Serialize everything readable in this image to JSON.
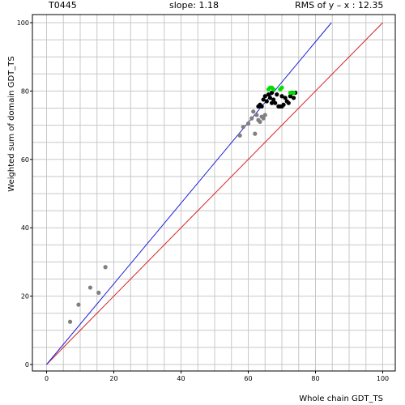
{
  "header": {
    "target_id": "T0445",
    "slope": "slope: 1.18",
    "rms": "RMS of  y – x : 12.35"
  },
  "chart_data": {
    "type": "scatter",
    "title": "",
    "xlabel": "Whole chain GDT_TS",
    "ylabel": "Weighted sum of domain GDT_TS",
    "xlim": [
      0,
      100
    ],
    "ylim": [
      0,
      100
    ],
    "xticks": [
      "0",
      "20",
      "40",
      "60",
      "80",
      "100"
    ],
    "yticks": [
      "0",
      "20",
      "40",
      "60",
      "80",
      "100"
    ],
    "grid": true,
    "reference_lines": [
      {
        "name": "y = x",
        "color": "#d62020",
        "slope": 1.0,
        "intercept": 0
      },
      {
        "name": "fit",
        "color": "#1c1cd8",
        "slope": 1.18,
        "intercept": 0
      }
    ],
    "series": [
      {
        "color": "#808080",
        "points": [
          [
            7,
            12.5
          ],
          [
            9.5,
            17.5
          ],
          [
            13,
            22.5
          ],
          [
            15.5,
            21
          ],
          [
            17.5,
            28.5
          ],
          [
            57.5,
            67
          ],
          [
            58.5,
            69.5
          ],
          [
            60,
            70.5
          ],
          [
            61,
            72
          ],
          [
            61.5,
            74
          ],
          [
            62,
            67.5
          ],
          [
            62.5,
            73
          ],
          [
            63,
            71.5
          ],
          [
            63.5,
            71
          ],
          [
            64,
            72.5
          ],
          [
            64.5,
            72
          ],
          [
            65,
            73
          ]
        ]
      },
      {
        "color": "#000000",
        "points": [
          [
            63,
            75.5
          ],
          [
            63.5,
            76
          ],
          [
            64,
            75.5
          ],
          [
            64.5,
            77.5
          ],
          [
            65,
            78.5
          ],
          [
            65.5,
            77
          ],
          [
            66,
            79
          ],
          [
            66.5,
            78
          ],
          [
            67,
            79.5
          ],
          [
            67.5,
            77.5
          ],
          [
            68,
            76.5
          ],
          [
            68.5,
            79
          ],
          [
            69,
            75.5
          ],
          [
            69.5,
            75.5
          ],
          [
            70,
            78.5
          ],
          [
            70.5,
            76
          ],
          [
            71,
            78
          ],
          [
            71.5,
            77
          ],
          [
            72,
            76.5
          ],
          [
            72.5,
            78.5
          ],
          [
            73,
            79.5
          ],
          [
            73.5,
            78
          ],
          [
            74,
            79.5
          ],
          [
            67,
            76.5
          ],
          [
            70,
            75.5
          ]
        ]
      },
      {
        "color": "#00e000",
        "points": [
          [
            66,
            80.5
          ],
          [
            66.5,
            81
          ],
          [
            67,
            81
          ],
          [
            67.5,
            80.5
          ],
          [
            69.5,
            80.5
          ],
          [
            70,
            81
          ],
          [
            72.5,
            79.5
          ],
          [
            73.5,
            79.5
          ]
        ]
      }
    ]
  }
}
